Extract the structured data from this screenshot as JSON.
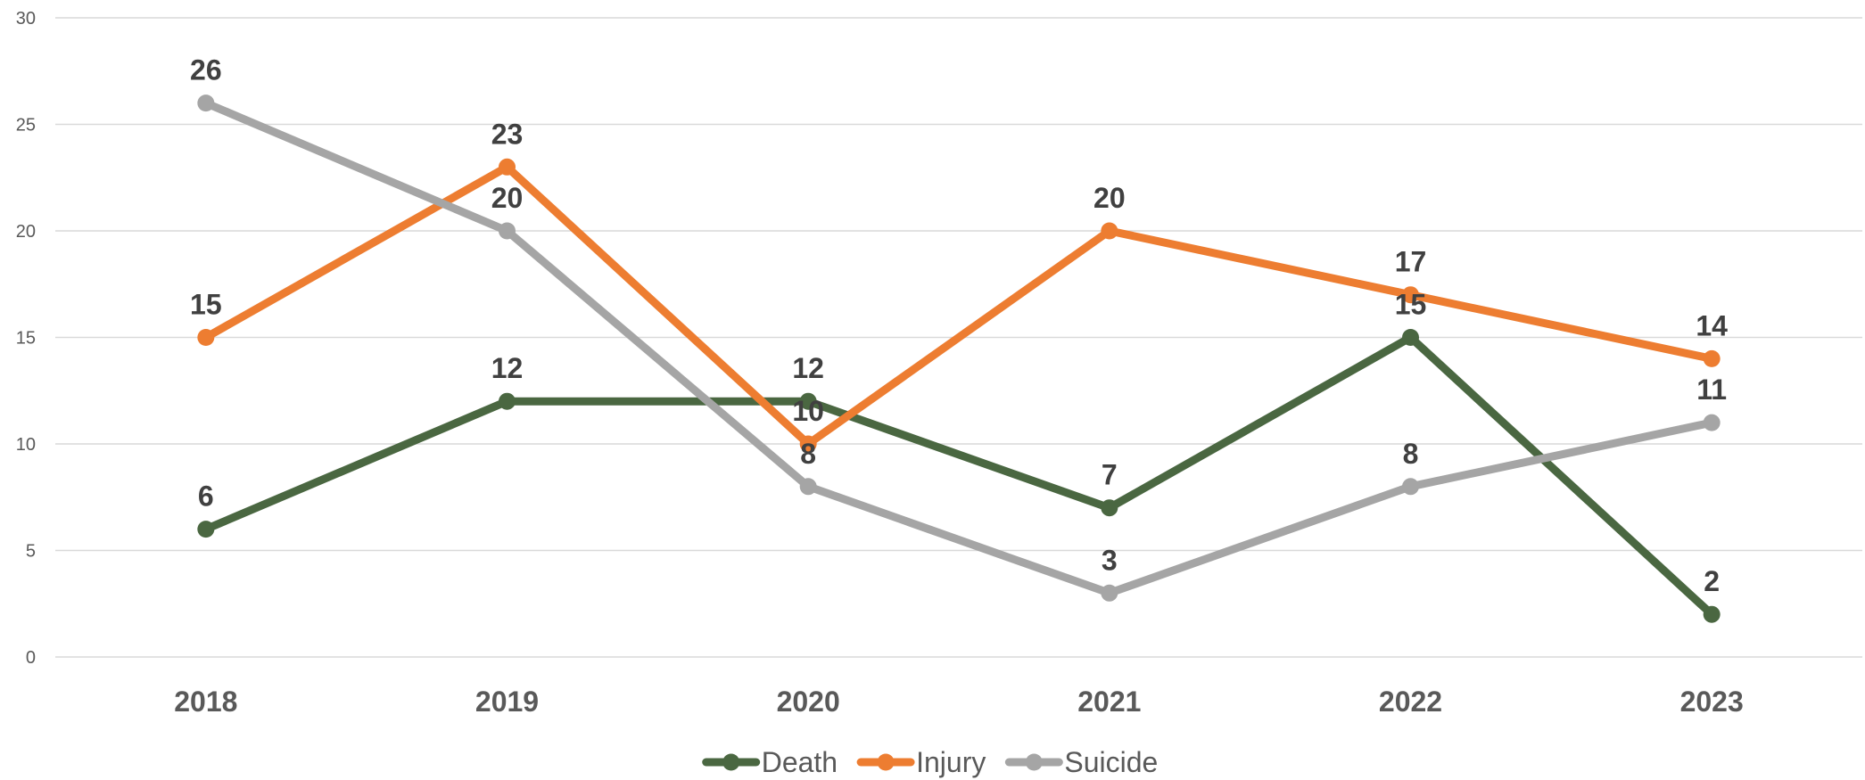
{
  "chart_data": {
    "type": "line",
    "categories": [
      "2018",
      "2019",
      "2020",
      "2021",
      "2022",
      "2023"
    ],
    "series": [
      {
        "name": "Death",
        "color": "#4a6741",
        "values": [
          6,
          12,
          12,
          7,
          15,
          2
        ]
      },
      {
        "name": "Injury",
        "color": "#ed7d31",
        "values": [
          15,
          23,
          10,
          20,
          17,
          14
        ]
      },
      {
        "name": "Suicide",
        "color": "#a5a5a5",
        "values": [
          26,
          20,
          8,
          3,
          8,
          11
        ]
      }
    ],
    "ylim": [
      0,
      30
    ],
    "yticks": [
      0,
      5,
      10,
      15,
      20,
      25,
      30
    ],
    "grid": true,
    "legend": "bottom",
    "data_labels": true
  }
}
